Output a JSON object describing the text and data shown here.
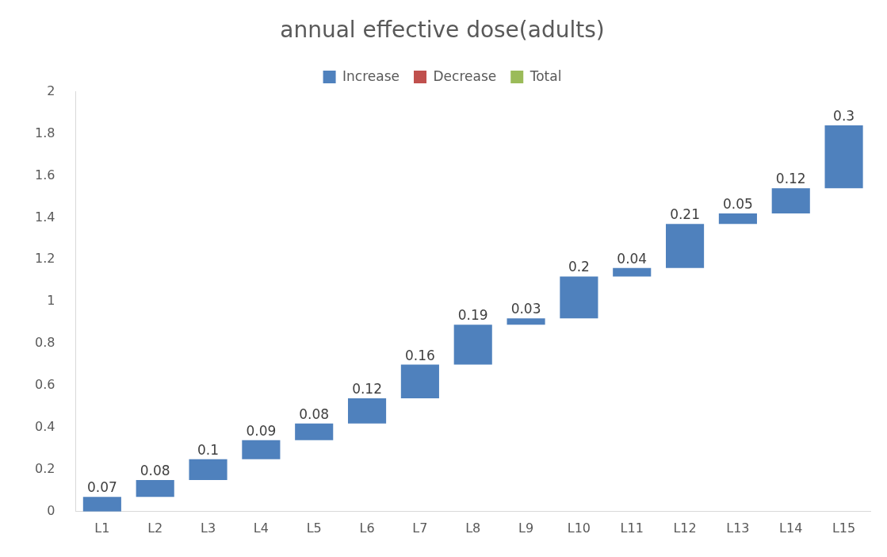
{
  "chart_data": {
    "type": "bar",
    "title": "annual effective dose(adults)",
    "categories": [
      "L1",
      "L2",
      "L3",
      "L4",
      "L5",
      "L6",
      "L7",
      "L8",
      "L9",
      "L10",
      "L11",
      "L12",
      "L13",
      "L14",
      "L15"
    ],
    "series": [
      {
        "name": "Increase",
        "color": "#4f81bd",
        "values": [
          0.07,
          0.08,
          0.1,
          0.09,
          0.08,
          0.12,
          0.16,
          0.19,
          0.03,
          0.2,
          0.04,
          0.21,
          0.05,
          0.12,
          0.3
        ],
        "base": [
          0,
          0.07,
          0.15,
          0.25,
          0.34,
          0.42,
          0.54,
          0.7,
          0.89,
          0.92,
          1.12,
          1.16,
          1.37,
          1.42,
          1.54
        ]
      },
      {
        "name": "Decrease",
        "color": "#c0504d",
        "values": [
          null,
          null,
          null,
          null,
          null,
          null,
          null,
          null,
          null,
          null,
          null,
          null,
          null,
          null,
          null
        ]
      },
      {
        "name": "Total",
        "color": "#9bbb59",
        "values": [
          null,
          null,
          null,
          null,
          null,
          null,
          null,
          null,
          null,
          null,
          null,
          null,
          null,
          null,
          null
        ]
      }
    ],
    "ylim": [
      0,
      2
    ],
    "yticks": [
      0,
      0.2,
      0.4,
      0.6,
      0.8,
      1,
      1.2,
      1.4,
      1.6,
      1.8,
      2
    ],
    "grid": false,
    "legend": "top",
    "data_labels": true
  }
}
